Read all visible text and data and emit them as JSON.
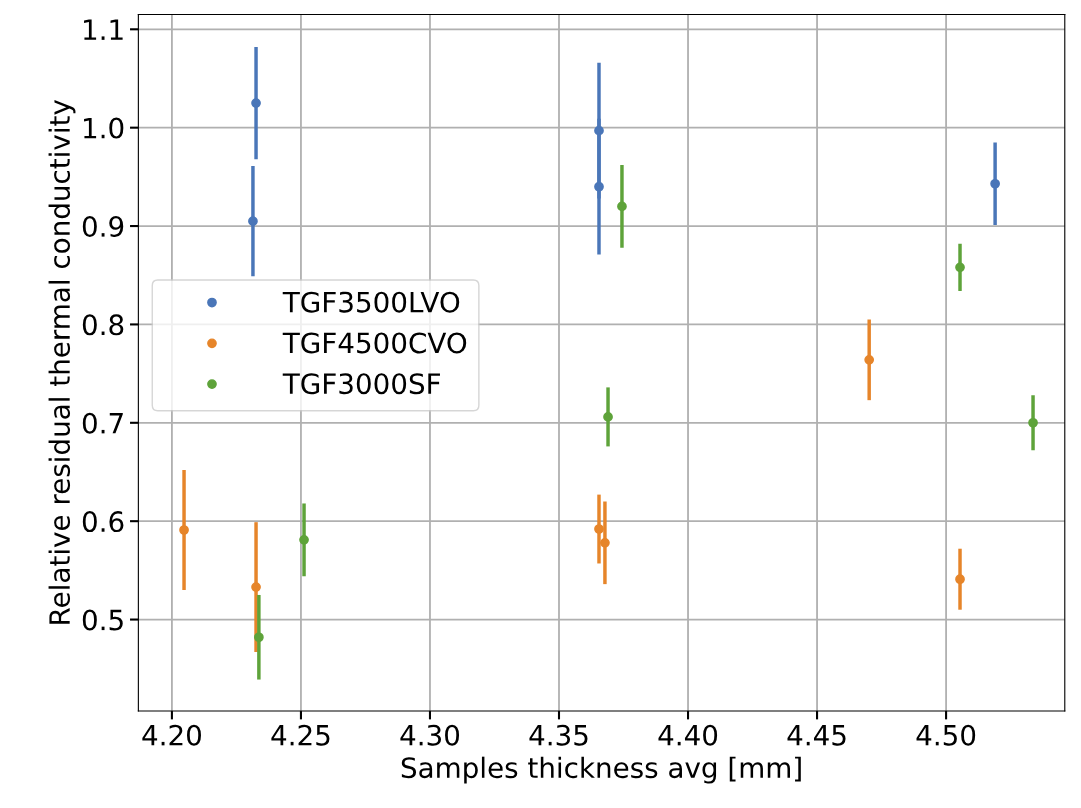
{
  "chart_data": {
    "type": "scatter",
    "xlabel": "Samples thickness avg [mm]",
    "ylabel": "Relative residual thermal conductivity",
    "xlim": [
      4.187,
      4.546
    ],
    "ylim": [
      0.407,
      1.115
    ],
    "xticks": [
      {
        "value": 4.2,
        "label": "4.20"
      },
      {
        "value": 4.25,
        "label": "4.25"
      },
      {
        "value": 4.3,
        "label": "4.30"
      },
      {
        "value": 4.35,
        "label": "4.35"
      },
      {
        "value": 4.4,
        "label": "4.40"
      },
      {
        "value": 4.45,
        "label": "4.45"
      },
      {
        "value": 4.5,
        "label": "4.50"
      }
    ],
    "yticks": [
      0.5,
      0.6,
      0.7,
      0.8,
      0.9,
      {
        "value": 1.0,
        "label": "1.0"
      },
      1.1
    ],
    "grid": true,
    "legend": "center left",
    "marker": "circle",
    "series": [
      {
        "name": "TGF3500LVO",
        "color": "#4a76b8",
        "x": [
          4.2326,
          4.2314,
          4.3655,
          4.3655,
          4.519
        ],
        "values": [
          1.025,
          0.905,
          0.997,
          0.94,
          0.943
        ],
        "errors": [
          0.057,
          0.056,
          0.069,
          0.069,
          0.042
        ]
      },
      {
        "name": "TGF4500CVO",
        "color": "#e6852a",
        "x": [
          4.2047,
          4.2326,
          4.3655,
          4.3678,
          4.4702,
          4.5054
        ],
        "values": [
          0.591,
          0.533,
          0.592,
          0.578,
          0.764,
          0.541
        ],
        "errors": [
          0.061,
          0.066,
          0.035,
          0.042,
          0.041,
          0.031
        ]
      },
      {
        "name": "TGF3000SF",
        "color": "#5ea33a",
        "x": [
          4.2337,
          4.2512,
          4.3744,
          4.369,
          4.5054,
          4.5337
        ],
        "values": [
          0.482,
          0.581,
          0.92,
          0.706,
          0.858,
          0.7
        ],
        "errors": [
          0.043,
          0.037,
          0.042,
          0.03,
          0.024,
          0.028
        ]
      }
    ]
  }
}
